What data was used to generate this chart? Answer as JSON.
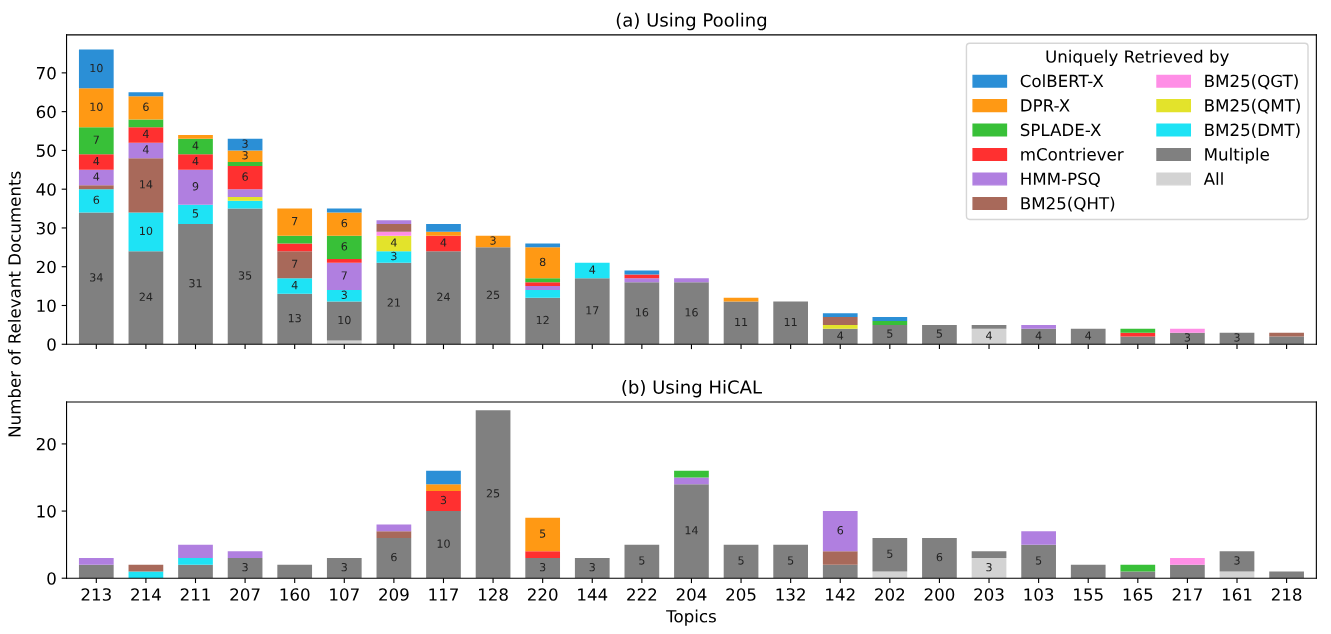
{
  "chart_data": [
    {
      "type": "bar",
      "stacked": true,
      "title": "(a) Using Pooling",
      "ylabel": "Number of Relevant Documents",
      "legend_title": "Uniquely Retrieved by",
      "legend": "top right",
      "tick_labels": "y",
      "ylim": [
        0,
        79.8
      ],
      "yticks": [
        0,
        10,
        20,
        30,
        40,
        50,
        60,
        70
      ],
      "categories": [
        "213",
        "214",
        "211",
        "207",
        "160",
        "107",
        "209",
        "117",
        "128",
        "220",
        "144",
        "222",
        "204",
        "205",
        "132",
        "142",
        "202",
        "200",
        "203",
        "103",
        "155",
        "165",
        "217",
        "161",
        "218"
      ],
      "series": [
        {
          "name": "All",
          "color": "#d3d3d3",
          "values": [
            null,
            null,
            null,
            null,
            null,
            1,
            null,
            null,
            null,
            null,
            null,
            null,
            null,
            null,
            null,
            null,
            null,
            null,
            4,
            null,
            null,
            null,
            null,
            null,
            null
          ],
          "value_labels": [
            null,
            null,
            null,
            null,
            null,
            null,
            null,
            null,
            null,
            null,
            null,
            null,
            null,
            null,
            null,
            null,
            null,
            null,
            "4",
            null,
            null,
            null,
            null,
            null,
            null
          ]
        },
        {
          "name": "Multiple",
          "color": "#808080",
          "values": [
            34,
            24,
            31,
            35,
            13,
            10,
            21,
            24,
            25,
            12,
            17,
            16,
            16,
            11,
            11,
            4,
            5,
            5,
            1,
            4,
            4,
            2,
            3,
            3,
            2
          ],
          "value_labels": [
            "34",
            "24",
            "31",
            "35",
            "13",
            "10",
            "21",
            "24",
            "25",
            "12",
            "17",
            "16",
            "16",
            "11",
            "11",
            "4",
            "5",
            "5",
            null,
            "4",
            "4",
            null,
            "3",
            "3",
            null
          ]
        },
        {
          "name": "BM25(DMT)",
          "color": "#1ee3f5",
          "values": [
            6,
            10,
            5,
            2,
            4,
            3,
            3,
            null,
            null,
            2,
            4,
            null,
            null,
            null,
            null,
            null,
            null,
            null,
            null,
            null,
            null,
            null,
            null,
            null,
            null
          ],
          "value_labels": [
            "6",
            "10",
            "5",
            null,
            "4",
            "3",
            "3",
            null,
            null,
            null,
            "4",
            null,
            null,
            null,
            null,
            null,
            null,
            null,
            null,
            null,
            null,
            null,
            null,
            null,
            null
          ]
        },
        {
          "name": "BM25(QMT)",
          "color": "#e3e32b",
          "values": [
            null,
            null,
            null,
            1,
            null,
            null,
            4,
            null,
            null,
            null,
            null,
            null,
            null,
            null,
            null,
            1,
            null,
            null,
            null,
            null,
            null,
            null,
            null,
            null,
            null
          ],
          "value_labels": [
            null,
            null,
            null,
            null,
            null,
            null,
            "4",
            null,
            null,
            null,
            null,
            null,
            null,
            null,
            null,
            null,
            null,
            null,
            null,
            null,
            null,
            null,
            null,
            null,
            null
          ]
        },
        {
          "name": "BM25(QGT)",
          "color": "#ff8ee6",
          "values": [
            null,
            null,
            null,
            null,
            null,
            null,
            1,
            null,
            null,
            null,
            null,
            null,
            null,
            null,
            null,
            null,
            null,
            null,
            null,
            null,
            null,
            null,
            1,
            null,
            null
          ]
        },
        {
          "name": "BM25(QHT)",
          "color": "#a8695a",
          "values": [
            1,
            14,
            null,
            null,
            7,
            null,
            2,
            null,
            null,
            null,
            null,
            null,
            null,
            null,
            null,
            2,
            null,
            null,
            null,
            null,
            null,
            null,
            null,
            null,
            1
          ],
          "value_labels": [
            null,
            "14",
            null,
            null,
            "7",
            null,
            null,
            null,
            null,
            null,
            null,
            null,
            null,
            null,
            null,
            null,
            null,
            null,
            null,
            null,
            null,
            null,
            null,
            null,
            null
          ]
        },
        {
          "name": "HMM-PSQ",
          "color": "#b07fe0",
          "values": [
            4,
            4,
            9,
            2,
            null,
            7,
            1,
            null,
            null,
            1,
            null,
            1,
            1,
            null,
            null,
            null,
            null,
            null,
            null,
            1,
            null,
            null,
            null,
            null,
            null
          ],
          "value_labels": [
            "4",
            "4",
            "9",
            null,
            null,
            "7",
            null,
            null,
            null,
            null,
            null,
            null,
            null,
            null,
            null,
            null,
            null,
            null,
            null,
            null,
            null,
            null,
            null,
            null,
            null
          ]
        },
        {
          "name": "mContriever",
          "color": "#ff3030",
          "values": [
            4,
            4,
            4,
            6,
            2,
            1,
            null,
            4,
            null,
            1,
            null,
            1,
            null,
            null,
            null,
            null,
            null,
            null,
            null,
            null,
            null,
            1,
            null,
            null,
            null
          ],
          "value_labels": [
            "4",
            "4",
            "4",
            "6",
            null,
            null,
            null,
            "4",
            null,
            null,
            null,
            null,
            null,
            null,
            null,
            null,
            null,
            null,
            null,
            null,
            null,
            null,
            null,
            null,
            null
          ]
        },
        {
          "name": "SPLADE-X",
          "color": "#38c038",
          "values": [
            7,
            2,
            4,
            1,
            2,
            6,
            null,
            null,
            null,
            1,
            null,
            null,
            null,
            null,
            null,
            null,
            1,
            null,
            null,
            null,
            null,
            1,
            null,
            null,
            null
          ],
          "value_labels": [
            "7",
            null,
            "4",
            null,
            null,
            "6",
            null,
            null,
            null,
            null,
            null,
            null,
            null,
            null,
            null,
            null,
            null,
            null,
            null,
            null,
            null,
            null,
            null,
            null,
            null
          ]
        },
        {
          "name": "DPR-X",
          "color": "#ff9914",
          "values": [
            10,
            6,
            1,
            3,
            7,
            6,
            null,
            1,
            3,
            8,
            null,
            null,
            null,
            1,
            null,
            null,
            null,
            null,
            null,
            null,
            null,
            null,
            null,
            null,
            null
          ],
          "value_labels": [
            "10",
            "6",
            null,
            "3",
            "7",
            "6",
            null,
            null,
            "3",
            "8",
            null,
            null,
            null,
            null,
            null,
            null,
            null,
            null,
            null,
            null,
            null,
            null,
            null,
            null,
            null
          ]
        },
        {
          "name": "ColBERT-X",
          "color": "#2b8fd6",
          "values": [
            10,
            1,
            null,
            3,
            null,
            1,
            null,
            2,
            null,
            1,
            null,
            1,
            null,
            null,
            null,
            1,
            1,
            null,
            null,
            null,
            null,
            null,
            null,
            null,
            null
          ],
          "value_labels": [
            "10",
            null,
            null,
            "3",
            null,
            null,
            null,
            null,
            null,
            null,
            null,
            null,
            null,
            null,
            null,
            null,
            null,
            null,
            null,
            null,
            null,
            null,
            null,
            null,
            null
          ]
        }
      ]
    },
    {
      "type": "bar",
      "stacked": true,
      "title": "(b) Using HiCAL",
      "xlabel": "Topics",
      "ylim": [
        0,
        26.25
      ],
      "yticks": [
        0,
        10,
        20
      ],
      "categories": [
        "213",
        "214",
        "211",
        "207",
        "160",
        "107",
        "209",
        "117",
        "128",
        "220",
        "144",
        "222",
        "204",
        "205",
        "132",
        "142",
        "202",
        "200",
        "203",
        "103",
        "155",
        "165",
        "217",
        "161",
        "218"
      ],
      "series": [
        {
          "color": "#d3d3d3",
          "values": [
            null,
            null,
            null,
            null,
            null,
            null,
            null,
            null,
            null,
            null,
            null,
            null,
            null,
            null,
            null,
            null,
            1,
            null,
            3,
            null,
            null,
            null,
            null,
            1,
            null
          ],
          "value_labels": [
            null,
            null,
            null,
            null,
            null,
            null,
            null,
            null,
            null,
            null,
            null,
            null,
            null,
            null,
            null,
            null,
            null,
            null,
            "3",
            null,
            null,
            null,
            null,
            null,
            null
          ]
        },
        {
          "color": "#808080",
          "values": [
            2,
            null,
            2,
            3,
            2,
            3,
            6,
            10,
            25,
            3,
            3,
            5,
            14,
            5,
            5,
            2,
            5,
            6,
            1,
            5,
            2,
            1,
            2,
            3,
            1
          ],
          "value_labels": [
            null,
            null,
            null,
            "3",
            null,
            "3",
            "6",
            "10",
            "25",
            "3",
            "3",
            "5",
            "14",
            "5",
            "5",
            null,
            "5",
            "6",
            null,
            "5",
            null,
            null,
            null,
            "3",
            null
          ]
        },
        {
          "color": "#1ee3f5",
          "values": [
            null,
            1,
            1,
            null,
            null,
            null,
            null,
            null,
            null,
            null,
            null,
            null,
            null,
            null,
            null,
            null,
            null,
            null,
            null,
            null,
            null,
            null,
            null,
            null,
            null
          ]
        },
        {
          "color": "#ff8ee6",
          "values": [
            null,
            null,
            null,
            null,
            null,
            null,
            null,
            null,
            null,
            null,
            null,
            null,
            null,
            null,
            null,
            null,
            null,
            null,
            null,
            null,
            null,
            null,
            1,
            null,
            null
          ]
        },
        {
          "color": "#a8695a",
          "values": [
            null,
            1,
            null,
            null,
            null,
            null,
            1,
            null,
            null,
            null,
            null,
            null,
            null,
            null,
            null,
            2,
            null,
            null,
            null,
            null,
            null,
            null,
            null,
            null,
            null
          ]
        },
        {
          "color": "#b07fe0",
          "values": [
            1,
            null,
            2,
            1,
            null,
            null,
            1,
            null,
            null,
            null,
            null,
            null,
            1,
            null,
            null,
            6,
            null,
            null,
            null,
            2,
            null,
            null,
            null,
            null,
            null
          ],
          "value_labels": [
            null,
            null,
            null,
            null,
            null,
            null,
            null,
            null,
            null,
            null,
            null,
            null,
            null,
            null,
            null,
            "6",
            null,
            null,
            null,
            null,
            null,
            null,
            null,
            null,
            null
          ]
        },
        {
          "color": "#ff3030",
          "values": [
            null,
            null,
            null,
            null,
            null,
            null,
            null,
            3,
            null,
            1,
            null,
            null,
            null,
            null,
            null,
            null,
            null,
            null,
            null,
            null,
            null,
            null,
            null,
            null,
            null
          ],
          "value_labels": [
            null,
            null,
            null,
            null,
            null,
            null,
            null,
            "3",
            null,
            null,
            null,
            null,
            null,
            null,
            null,
            null,
            null,
            null,
            null,
            null,
            null,
            null,
            null,
            null,
            null
          ]
        },
        {
          "color": "#38c038",
          "values": [
            null,
            null,
            null,
            null,
            null,
            null,
            null,
            null,
            null,
            null,
            null,
            null,
            1,
            null,
            null,
            null,
            null,
            null,
            null,
            null,
            null,
            1,
            null,
            null,
            null
          ]
        },
        {
          "color": "#ff9914",
          "values": [
            null,
            null,
            null,
            null,
            null,
            null,
            null,
            1,
            null,
            5,
            null,
            null,
            null,
            null,
            null,
            null,
            null,
            null,
            null,
            null,
            null,
            null,
            null,
            null,
            null
          ],
          "value_labels": [
            null,
            null,
            null,
            null,
            null,
            null,
            null,
            null,
            null,
            "5",
            null,
            null,
            null,
            null,
            null,
            null,
            null,
            null,
            null,
            null,
            null,
            null,
            null,
            null,
            null
          ]
        },
        {
          "color": "#2b8fd6",
          "values": [
            null,
            null,
            null,
            null,
            null,
            null,
            null,
            2,
            null,
            null,
            null,
            null,
            null,
            null,
            null,
            null,
            null,
            null,
            null,
            null,
            null,
            null,
            null,
            null,
            null
          ]
        }
      ]
    }
  ]
}
